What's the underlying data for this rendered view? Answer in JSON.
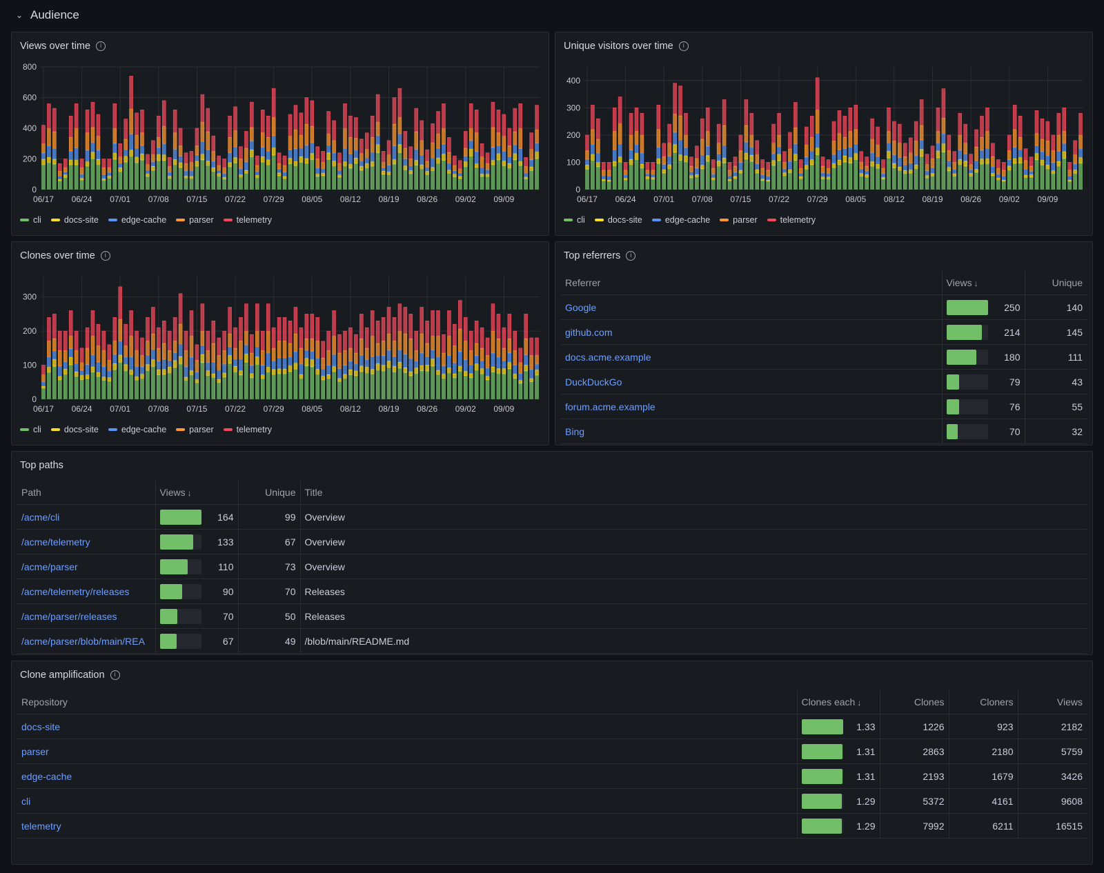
{
  "section": {
    "title": "Audience"
  },
  "colors": {
    "cli": "#73bf69",
    "docs-site": "#fade2a",
    "edge-cache": "#5794f2",
    "parser": "#ff9830",
    "telemetry": "#f2495c"
  },
  "legend": [
    "cli",
    "docs-site",
    "edge-cache",
    "parser",
    "telemetry"
  ],
  "date_ticks": [
    "06/17",
    "06/24",
    "07/01",
    "07/08",
    "07/15",
    "07/22",
    "07/29",
    "08/05",
    "08/12",
    "08/19",
    "08/26",
    "09/02",
    "09/09"
  ],
  "views_chart": {
    "title": "Views over time",
    "chart_data": {
      "type": "bar",
      "stacked": true,
      "ylim": [
        0,
        800
      ],
      "yticks": [
        0,
        200,
        400,
        600,
        800
      ],
      "x_start": "06/17",
      "days": 91,
      "series_names": [
        "cli",
        "docs-site",
        "edge-cache",
        "parser",
        "telemetry"
      ],
      "totals": [
        420,
        560,
        530,
        170,
        200,
        480,
        560,
        200,
        520,
        570,
        490,
        200,
        200,
        560,
        300,
        460,
        740,
        500,
        520,
        230,
        320,
        480,
        580,
        210,
        520,
        400,
        240,
        250,
        400,
        620,
        530,
        350,
        220,
        200,
        480,
        540,
        280,
        380,
        570,
        220,
        520,
        480,
        660,
        240,
        220,
        490,
        550,
        500,
        600,
        580,
        280,
        250,
        510,
        450,
        240,
        560,
        480,
        470,
        330,
        370,
        480,
        620,
        250,
        320,
        600,
        660,
        380,
        280,
        530,
        450,
        260,
        430,
        510,
        560,
        340,
        220,
        190,
        380,
        560,
        520,
        300,
        240,
        570,
        520,
        490,
        400,
        530,
        560,
        210,
        370,
        550
      ]
    }
  },
  "visitors_chart": {
    "title": "Unique visitors over time",
    "chart_data": {
      "type": "bar",
      "stacked": true,
      "ylim": [
        0,
        450
      ],
      "yticks": [
        0,
        100,
        200,
        300,
        400
      ],
      "x_start": "06/17",
      "days": 91,
      "series_names": [
        "cli",
        "docs-site",
        "edge-cache",
        "parser",
        "telemetry"
      ],
      "totals": [
        200,
        310,
        260,
        100,
        100,
        300,
        340,
        100,
        280,
        300,
        280,
        100,
        100,
        310,
        170,
        240,
        390,
        380,
        280,
        120,
        160,
        260,
        300,
        110,
        240,
        330,
        100,
        120,
        200,
        330,
        280,
        180,
        110,
        100,
        240,
        280,
        140,
        210,
        320,
        110,
        230,
        270,
        410,
        120,
        110,
        250,
        290,
        270,
        300,
        310,
        140,
        120,
        260,
        230,
        110,
        300,
        250,
        240,
        170,
        190,
        250,
        330,
        130,
        160,
        300,
        370,
        200,
        140,
        280,
        240,
        130,
        220,
        270,
        300,
        170,
        110,
        100,
        200,
        310,
        270,
        150,
        120,
        290,
        260,
        250,
        200,
        280,
        300,
        100,
        180,
        280
      ]
    }
  },
  "clones_chart": {
    "title": "Clones over time",
    "chart_data": {
      "type": "bar",
      "stacked": true,
      "ylim": [
        0,
        360
      ],
      "yticks": [
        0,
        100,
        200,
        300
      ],
      "x_start": "06/17",
      "days": 91,
      "series_names": [
        "cli",
        "docs-site",
        "edge-cache",
        "parser",
        "telemetry"
      ],
      "totals": [
        100,
        240,
        250,
        200,
        200,
        260,
        200,
        150,
        210,
        260,
        220,
        200,
        160,
        240,
        330,
        220,
        260,
        200,
        180,
        240,
        270,
        210,
        230,
        200,
        240,
        310,
        200,
        260,
        160,
        280,
        200,
        230,
        180,
        200,
        270,
        210,
        240,
        280,
        190,
        280,
        200,
        280,
        210,
        240,
        240,
        230,
        270,
        210,
        250,
        250,
        240,
        170,
        200,
        260,
        190,
        200,
        210,
        190,
        250,
        210,
        260,
        230,
        240,
        270,
        240,
        280,
        270,
        250,
        200,
        270,
        230,
        260,
        260,
        190,
        260,
        220,
        290,
        240,
        200,
        230,
        210,
        180,
        280,
        250,
        210,
        250,
        200,
        150,
        250,
        180,
        180
      ]
    }
  },
  "referrers": {
    "title": "Top referrers",
    "headers": {
      "referrer": "Referrer",
      "views": "Views",
      "unique": "Unique"
    },
    "max_views": 250,
    "rows": [
      {
        "referrer": "Google",
        "views": "250",
        "unique": "140"
      },
      {
        "referrer": "github.com",
        "views": "214",
        "unique": "145"
      },
      {
        "referrer": "docs.acme.example",
        "views": "180",
        "unique": "111"
      },
      {
        "referrer": "DuckDuckGo",
        "views": "79",
        "unique": "43"
      },
      {
        "referrer": "forum.acme.example",
        "views": "76",
        "unique": "55"
      },
      {
        "referrer": "Bing",
        "views": "70",
        "unique": "32"
      }
    ]
  },
  "paths": {
    "title": "Top paths",
    "headers": {
      "path": "Path",
      "views": "Views",
      "unique": "Unique",
      "title": "Title"
    },
    "max_views": 164,
    "rows": [
      {
        "path": "/acme/cli",
        "views": "164",
        "unique": "99",
        "title": "Overview"
      },
      {
        "path": "/acme/telemetry",
        "views": "133",
        "unique": "67",
        "title": "Overview"
      },
      {
        "path": "/acme/parser",
        "views": "110",
        "unique": "73",
        "title": "Overview"
      },
      {
        "path": "/acme/telemetry/releases",
        "views": "90",
        "unique": "70",
        "title": "Releases"
      },
      {
        "path": "/acme/parser/releases",
        "views": "70",
        "unique": "50",
        "title": "Releases"
      },
      {
        "path": "/acme/parser/blob/main/REA",
        "views": "67",
        "unique": "49",
        "title": "/blob/main/README.md"
      }
    ]
  },
  "amplification": {
    "title": "Clone amplification",
    "headers": {
      "repository": "Repository",
      "clones_each": "Clones each",
      "clones": "Clones",
      "cloners": "Cloners",
      "views": "Views"
    },
    "max_each": 1.33,
    "rows": [
      {
        "repository": "docs-site",
        "clones_each": "1.33",
        "clones": "1226",
        "cloners": "923",
        "views": "2182"
      },
      {
        "repository": "parser",
        "clones_each": "1.31",
        "clones": "2863",
        "cloners": "2180",
        "views": "5759"
      },
      {
        "repository": "edge-cache",
        "clones_each": "1.31",
        "clones": "2193",
        "cloners": "1679",
        "views": "3426"
      },
      {
        "repository": "cli",
        "clones_each": "1.29",
        "clones": "5372",
        "cloners": "4161",
        "views": "9608"
      },
      {
        "repository": "telemetry",
        "clones_each": "1.29",
        "clones": "7992",
        "cloners": "6211",
        "views": "16515"
      }
    ]
  }
}
